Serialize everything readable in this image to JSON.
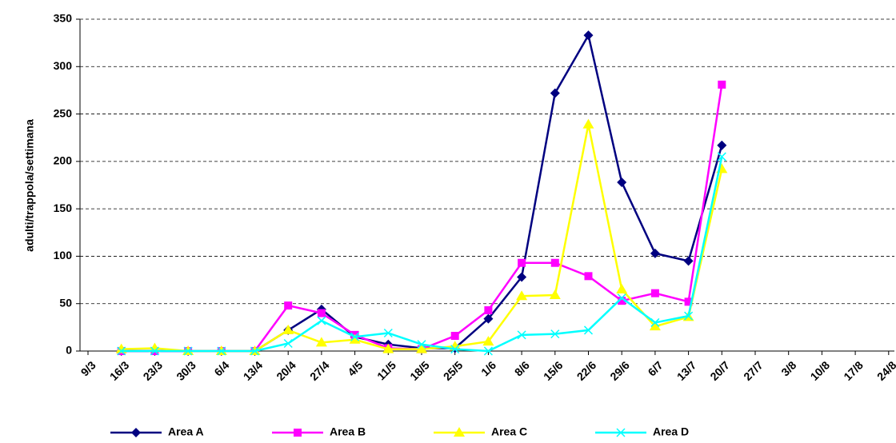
{
  "chart_data": {
    "type": "line",
    "y_label": "adulti/trappola/settimana",
    "categories": [
      "9/3",
      "16/3",
      "23/3",
      "30/3",
      "6/4",
      "13/4",
      "20/4",
      "27/4",
      "4/5",
      "11/5",
      "18/5",
      "25/5",
      "1/6",
      "8/6",
      "15/6",
      "22/6",
      "29/6",
      "6/7",
      "13/7",
      "20/7",
      "27/7",
      "3/8",
      "10/8",
      "17/8",
      "24/8"
    ],
    "series": [
      {
        "name": "Area A",
        "color": "#000080",
        "marker": "diamond",
        "values": [
          null,
          0,
          0,
          0,
          0,
          0,
          22,
          44,
          15,
          7,
          3,
          3,
          34,
          78,
          272,
          333,
          178,
          103,
          95,
          217,
          null,
          null,
          null,
          null,
          null
        ]
      },
      {
        "name": "Area B",
        "color": "#ff00ff",
        "marker": "square",
        "values": [
          null,
          0,
          0,
          0,
          0,
          0,
          48,
          40,
          17,
          3,
          2,
          16,
          43,
          93,
          93,
          79,
          53,
          61,
          52,
          281,
          null,
          null,
          null,
          null,
          null
        ]
      },
      {
        "name": "Area C",
        "color": "#ffff00",
        "marker": "triangle",
        "values": [
          null,
          2,
          3,
          0,
          0,
          0,
          22,
          9,
          12,
          2,
          2,
          5,
          10,
          58,
          59,
          239,
          65,
          26,
          36,
          192,
          null,
          null,
          null,
          null,
          null
        ]
      },
      {
        "name": "Area D",
        "color": "#00ffff",
        "marker": "x",
        "values": [
          null,
          0,
          0,
          0,
          0,
          0,
          8,
          32,
          15,
          19,
          7,
          2,
          0,
          17,
          18,
          22,
          56,
          30,
          37,
          205,
          null,
          null,
          null,
          null,
          null
        ]
      }
    ],
    "ylim": [
      0,
      350
    ],
    "yticks": [
      0,
      50,
      100,
      150,
      200,
      250,
      300,
      350
    ],
    "grid": true
  }
}
